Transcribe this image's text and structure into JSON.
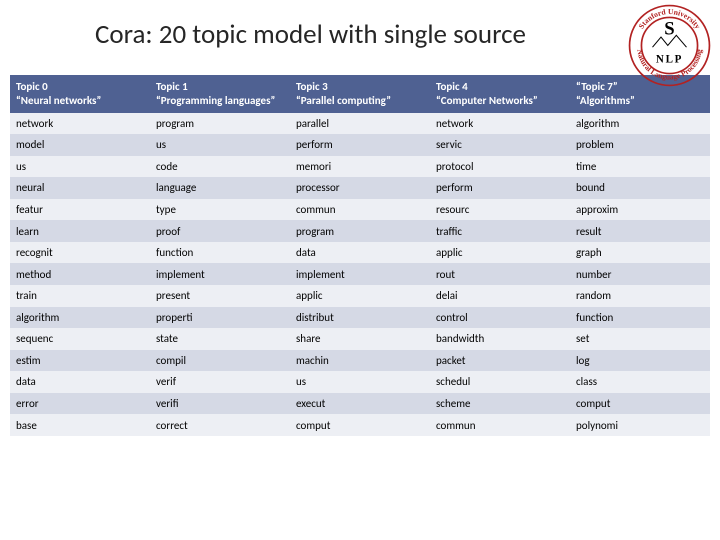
{
  "title": "Cora: 20 topic model with single source",
  "logo": {
    "top_text": "Stanford University",
    "bottom_text": "Natural Language Processing",
    "big_letter": "S",
    "nlp": "NLP"
  },
  "table": {
    "type": "table",
    "header_bg": "#4f6192",
    "header_fg": "#ffffff",
    "row_alt_bg": "#d5d9e5",
    "row_bg": "#edeff4",
    "font_size_header": 11,
    "font_size_cell": 11,
    "columns": [
      "Topic 0\n“Neural networks”",
      "Topic 1\n“Programming languages”",
      "Topic 3\n“Parallel computing”",
      "Topic 4\n“Computer Networks”",
      "“Topic 7”\n“Algorithms”"
    ],
    "rows": [
      [
        "network",
        "program",
        "parallel",
        "network",
        "algorithm"
      ],
      [
        "model",
        "us",
        "perform",
        "servic",
        "problem"
      ],
      [
        "us",
        "code",
        "memori",
        "protocol",
        "time"
      ],
      [
        "neural",
        "language",
        "processor",
        "perform",
        "bound"
      ],
      [
        "featur",
        "type",
        "commun",
        "resourc",
        "approxim"
      ],
      [
        "learn",
        "proof",
        "program",
        "traffic",
        "result"
      ],
      [
        "recognit",
        "function",
        "data",
        "applic",
        "graph"
      ],
      [
        "method",
        "implement",
        "implement",
        "rout",
        "number"
      ],
      [
        "train",
        "present",
        "applic",
        "delai",
        "random"
      ],
      [
        "algorithm",
        "properti",
        "distribut",
        "control",
        "function"
      ],
      [
        "sequenc",
        "state",
        "share",
        "bandwidth",
        "set"
      ],
      [
        "estim",
        "compil",
        "machin",
        "packet",
        "log"
      ],
      [
        "data",
        "verif",
        "us",
        "schedul",
        "class"
      ],
      [
        "error",
        "verifi",
        "execut",
        "scheme",
        "comput"
      ],
      [
        "base",
        "correct",
        "comput",
        "commun",
        "polynomi"
      ]
    ]
  }
}
